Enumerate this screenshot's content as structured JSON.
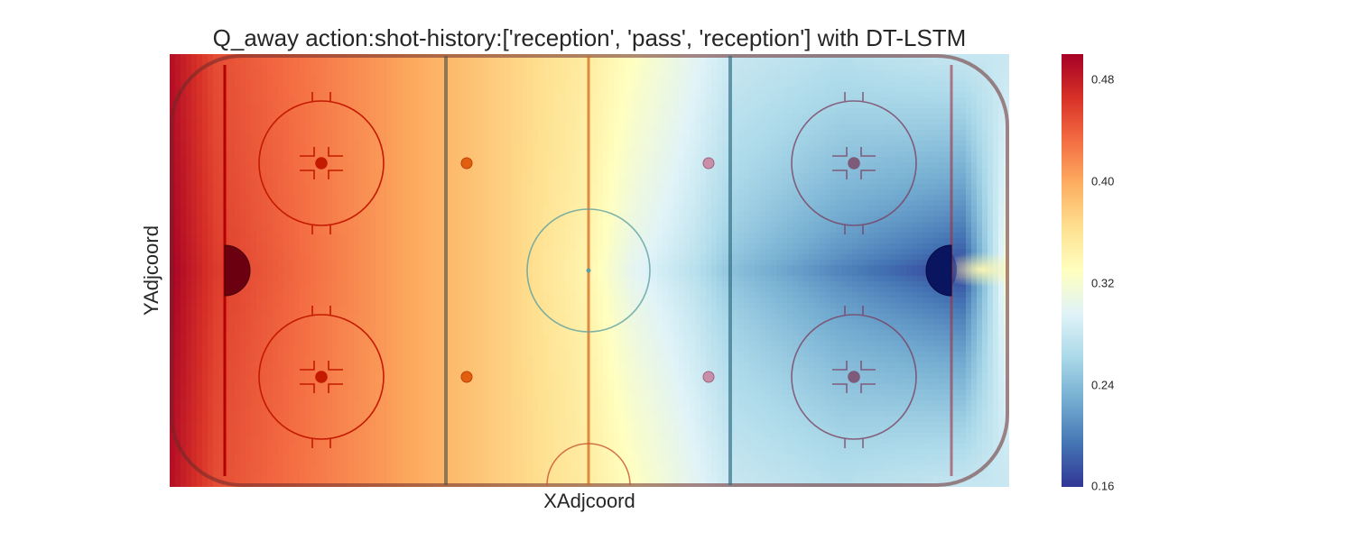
{
  "chart_data": {
    "type": "heatmap",
    "title": "Q_away action:shot-history:['reception', 'pass', 'reception'] with DT-LSTM",
    "xlabel": "XAdjcoord",
    "ylabel": "YAdjcoord",
    "x_range": [
      -100,
      100
    ],
    "y_range": [
      -42.5,
      42.5
    ],
    "grid": false,
    "colormap": "RdYlBu_r",
    "colorbar": {
      "min": 0.16,
      "max": 0.5,
      "ticks": [
        "0.48",
        "0.40",
        "0.32",
        "0.24",
        "0.16"
      ],
      "tick_values": [
        0.48,
        0.4,
        0.32,
        0.24,
        0.16
      ],
      "colors": [
        "#313695",
        "#4575b4",
        "#74add1",
        "#abd9e9",
        "#e0f3f8",
        "#ffffbf",
        "#fee090",
        "#fdae61",
        "#f46d43",
        "#d73027",
        "#a50026"
      ]
    },
    "value_profile": {
      "x": [
        -100,
        -89,
        -50,
        -20,
        0,
        10,
        25,
        35,
        60,
        75,
        89,
        100
      ],
      "q_at_center_line": [
        0.5,
        0.46,
        0.41,
        0.375,
        0.34,
        0.3,
        0.27,
        0.24,
        0.2,
        0.18,
        0.16,
        0.33
      ],
      "q_at_boards": [
        0.49,
        0.45,
        0.41,
        0.375,
        0.35,
        0.33,
        0.3,
        0.28,
        0.27,
        0.275,
        0.28,
        0.28
      ]
    },
    "rink_overlay": "hockey-rink"
  }
}
